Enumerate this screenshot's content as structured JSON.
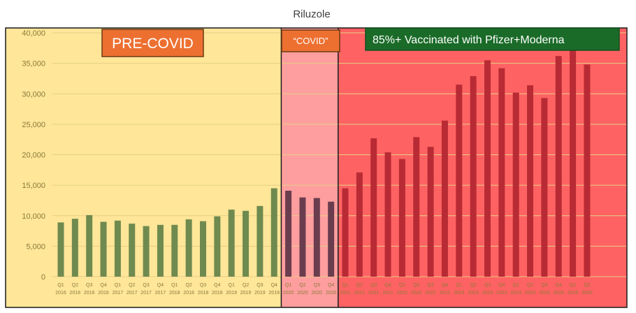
{
  "chart_data": {
    "type": "bar",
    "title": "Riluzole",
    "xlabel": "",
    "ylabel": "",
    "ylim": [
      0,
      40000
    ],
    "yticks": [
      "0",
      "5,000",
      "10,000",
      "15,000",
      "20,000",
      "25,000",
      "30,000",
      "35,000",
      "40,000"
    ],
    "ytick_values": [
      0,
      5000,
      10000,
      15000,
      20000,
      25000,
      30000,
      35000,
      40000
    ],
    "grid": true,
    "categories": [
      [
        "Q1",
        "2016"
      ],
      [
        "Q2",
        "2016"
      ],
      [
        "Q3",
        "2016"
      ],
      [
        "Q4",
        "2016"
      ],
      [
        "Q1",
        "2017"
      ],
      [
        "Q2",
        "2017"
      ],
      [
        "Q3",
        "2017"
      ],
      [
        "Q4",
        "2017"
      ],
      [
        "Q1",
        "2018"
      ],
      [
        "Q2",
        "2018"
      ],
      [
        "Q3",
        "2018"
      ],
      [
        "Q4",
        "2018"
      ],
      [
        "Q1",
        "2019"
      ],
      [
        "Q2",
        "2019"
      ],
      [
        "Q3",
        "2019"
      ],
      [
        "Q4",
        "2019"
      ],
      [
        "Q1",
        "2020"
      ],
      [
        "Q2",
        "2020"
      ],
      [
        "Q3",
        "2020"
      ],
      [
        "Q4",
        "2020"
      ],
      [
        "Q1",
        "2021"
      ],
      [
        "Q2",
        "2021"
      ],
      [
        "Q3",
        "2021"
      ],
      [
        "Q4",
        "2021"
      ],
      [
        "Q1",
        "2022"
      ],
      [
        "Q2",
        "2022"
      ],
      [
        "Q3",
        "2022"
      ],
      [
        "Q4",
        "2022"
      ],
      [
        "Q1",
        "2023"
      ],
      [
        "Q2",
        "2023"
      ],
      [
        "Q3",
        "2023"
      ],
      [
        "Q4",
        "2023"
      ],
      [
        "Q1",
        "2024"
      ],
      [
        "Q2",
        "2024"
      ],
      [
        "Q3",
        "2024"
      ],
      [
        "Q4",
        "2024"
      ],
      [
        "Q1",
        "2025"
      ],
      [
        "Q2",
        "2025"
      ]
    ],
    "values": [
      8900,
      9500,
      10100,
      9000,
      9200,
      8700,
      8300,
      8500,
      8500,
      9400,
      9100,
      9900,
      11000,
      10800,
      11600,
      14500,
      14100,
      13000,
      12900,
      12300,
      14500,
      17100,
      22700,
      20400,
      19300,
      22900,
      21300,
      25600,
      31500,
      32900,
      35500,
      34200,
      30200,
      31400,
      29300,
      36200,
      38000,
      34800
    ],
    "regions": [
      {
        "label": "PRE-COVID",
        "from": 0,
        "to": 15,
        "color": "#ffe699",
        "bar_color": "#6f8a4f"
      },
      {
        "label": "“COVID”",
        "from": 16,
        "to": 19,
        "color": "#ff9e9e",
        "bar_color": "#6a3d4e"
      },
      {
        "label": "85%+ Vaccinated with Pfizer+Moderna",
        "from": 20,
        "to": 37,
        "color": "#ff6262",
        "bar_color": "#b82b35"
      }
    ],
    "label_colors": {
      "orange_box": "#ed7031",
      "green_box": "#1a6b28",
      "box_text": "#ffffff"
    }
  }
}
